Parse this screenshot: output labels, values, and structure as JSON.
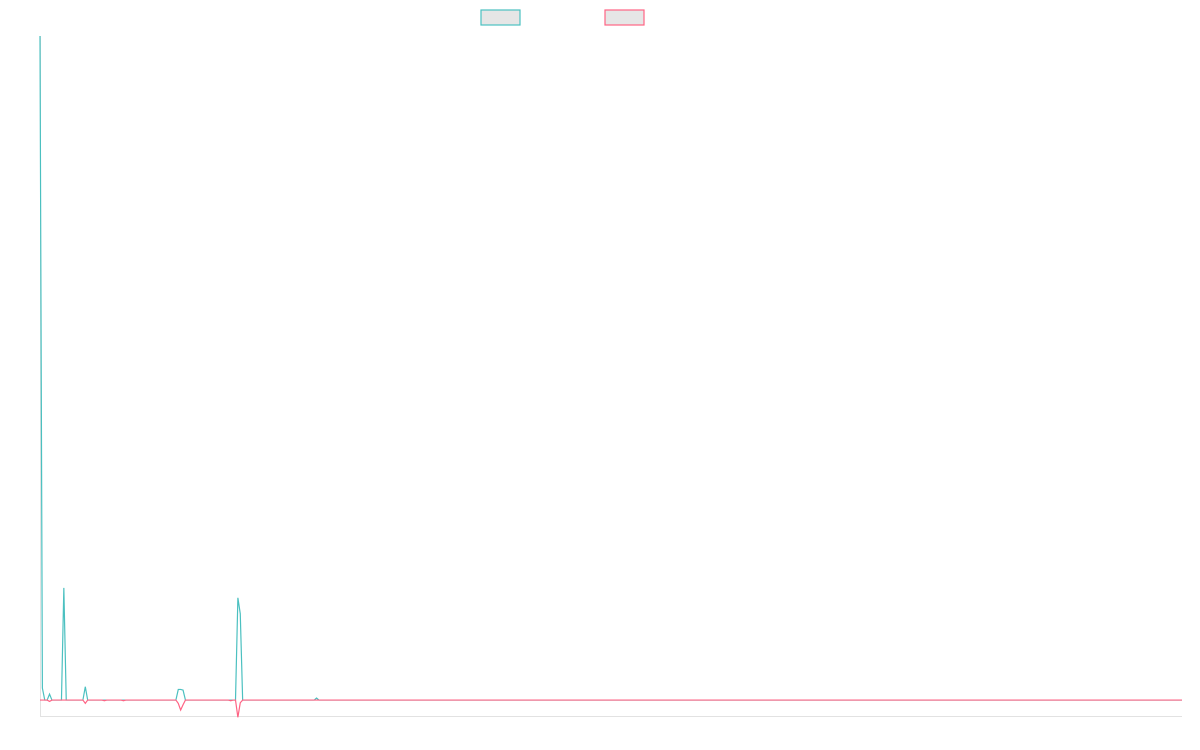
{
  "chart_data": {
    "type": "line",
    "title": "",
    "xlabel": "",
    "ylabel": "",
    "point_count": 480,
    "ylim": [
      -2.4,
      100
    ],
    "grid": false,
    "legend_position": "top",
    "series": [
      {
        "name": "",
        "color": "#4bc0c0",
        "default_value": 0,
        "points": [
          [
            0,
            100
          ],
          [
            1,
            1.8
          ],
          [
            4,
            0.9
          ],
          [
            10,
            16.9
          ],
          [
            19,
            2.0
          ],
          [
            58,
            1.6
          ],
          [
            59,
            1.6
          ],
          [
            60,
            1.5
          ],
          [
            83,
            15.4
          ],
          [
            84,
            13.0
          ],
          [
            116,
            0.3
          ]
        ]
      },
      {
        "name": "",
        "color": "#ff6384",
        "default_value": 0,
        "points": [
          [
            4,
            -0.2
          ],
          [
            19,
            -0.5
          ],
          [
            27,
            -0.1
          ],
          [
            35,
            -0.1
          ],
          [
            58,
            -0.5
          ],
          [
            59,
            -1.5
          ],
          [
            60,
            -0.7
          ],
          [
            80,
            -0.1
          ],
          [
            83,
            -2.6
          ],
          [
            84,
            -0.4
          ]
        ]
      }
    ]
  }
}
